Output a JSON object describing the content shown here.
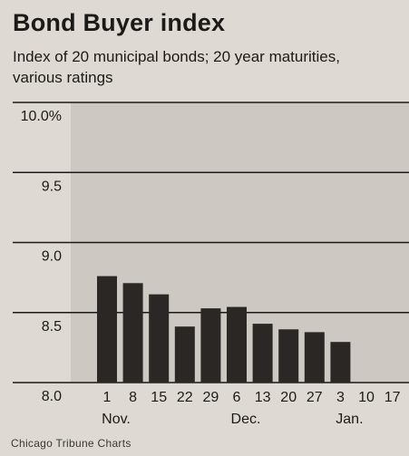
{
  "title": "Bond Buyer index",
  "subtitle": "Index of 20 municipal bonds; 20 year maturities, various ratings",
  "credit": "Chicago Tribune Charts",
  "colors": {
    "background": "#dedad3",
    "plot_shade": "#cdc9c2",
    "bar": "#2a2724",
    "gridline": "#1c1a18"
  },
  "chart_data": {
    "type": "bar",
    "title": "Bond Buyer index",
    "subtitle": "Index of 20 municipal bonds; 20 year maturities, various ratings",
    "categories": [
      "1",
      "8",
      "15",
      "22",
      "29",
      "6",
      "13",
      "20",
      "27",
      "3",
      "10",
      "17"
    ],
    "months": [
      {
        "label": "Nov.",
        "start": 0,
        "end": 4
      },
      {
        "label": "Dec.",
        "start": 5,
        "end": 8
      },
      {
        "label": "Jan.",
        "start": 9,
        "end": 11
      }
    ],
    "values": [
      8.76,
      8.71,
      8.63,
      8.4,
      8.53,
      8.54,
      8.42,
      8.38,
      8.36,
      8.29,
      null,
      null
    ],
    "ylim": [
      8.0,
      10.0
    ],
    "yticks": [
      8.0,
      8.5,
      9.0,
      9.5,
      10.0
    ],
    "ytick_labels": [
      "8.0",
      "8.5",
      "9.0",
      "9.5",
      "10.0%"
    ],
    "grid": true
  }
}
